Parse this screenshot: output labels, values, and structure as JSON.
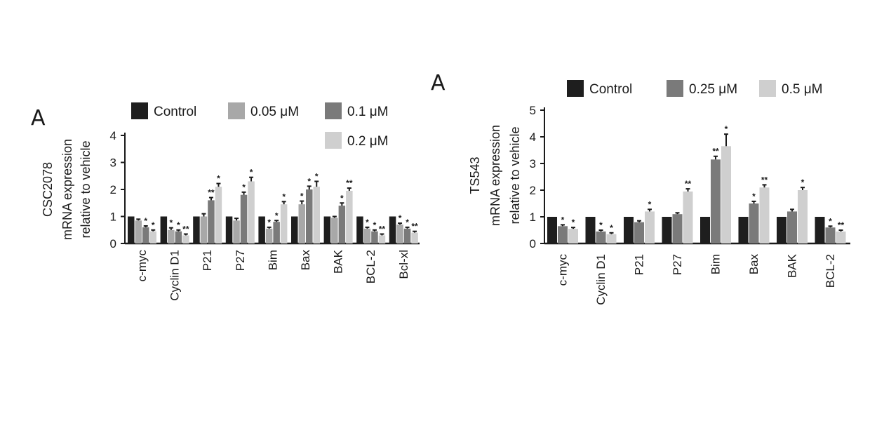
{
  "chart_data": [
    {
      "type": "bar",
      "panel_label": "A",
      "ylabel_lines": [
        "CSC2078",
        "mRNA expression",
        "relative to vehicle"
      ],
      "yticks": [
        "0",
        "1",
        "2",
        "3",
        "4"
      ],
      "ylim": [
        0,
        4
      ],
      "legend_placement": "top",
      "categories": [
        "c-myc",
        "Cyclin D1",
        "P21",
        "P27",
        "Bim",
        "Bax",
        "BAK",
        "BCL-2",
        "Bcl-xl"
      ],
      "series": [
        {
          "name": "Control",
          "color": "#1e1e1e",
          "values": [
            1,
            1,
            1,
            1,
            1,
            1,
            1,
            1,
            1
          ],
          "errors": [
            0,
            0,
            0,
            0,
            0,
            0,
            0,
            0,
            0
          ],
          "stars": [
            "",
            "",
            "",
            "",
            "",
            "",
            "",
            "",
            ""
          ]
        },
        {
          "name": "0.05 μM",
          "color": "#a8a8a8",
          "values": [
            0.85,
            0.5,
            1.0,
            0.85,
            0.55,
            1.45,
            0.95,
            0.55,
            0.7
          ],
          "errors": [
            0.05,
            0.08,
            0.1,
            0.08,
            0.05,
            0.12,
            0.05,
            0.05,
            0.05
          ],
          "stars": [
            "",
            "*",
            "",
            "",
            "*",
            "*",
            "",
            "*",
            "*"
          ]
        },
        {
          "name": "0.1 μM",
          "color": "#7a7a7a",
          "values": [
            0.6,
            0.45,
            1.6,
            1.8,
            0.8,
            2.0,
            1.4,
            0.45,
            0.55
          ],
          "errors": [
            0.05,
            0.05,
            0.1,
            0.1,
            0.05,
            0.12,
            0.1,
            0.05,
            0.05
          ],
          "stars": [
            "*",
            "*",
            "**",
            "*",
            "*",
            "*",
            "*",
            "*",
            "*"
          ]
        },
        {
          "name": "0.2 μM",
          "color": "#cfcfcf",
          "values": [
            0.45,
            0.3,
            2.1,
            2.3,
            1.45,
            2.1,
            1.95,
            0.3,
            0.4
          ],
          "errors": [
            0.05,
            0.05,
            0.12,
            0.15,
            0.1,
            0.2,
            0.1,
            0.05,
            0.05
          ],
          "stars": [
            "*",
            "**",
            "*",
            "*",
            "*",
            "*",
            "**",
            "**",
            "**"
          ]
        }
      ]
    },
    {
      "type": "bar",
      "panel_label": "A",
      "ylabel_lines": [
        "TS543",
        "mRNA expression",
        "relative to vehicle"
      ],
      "yticks": [
        "0",
        "1",
        "2",
        "3",
        "4",
        "5"
      ],
      "ylim": [
        0,
        5
      ],
      "legend_placement": "top",
      "categories": [
        "c-myc",
        "Cyclin D1",
        "P21",
        "P27",
        "Bim",
        "Bax",
        "BAK",
        "BCL-2"
      ],
      "series": [
        {
          "name": "Control",
          "color": "#1e1e1e",
          "values": [
            1,
            1,
            1,
            1,
            1,
            1,
            1,
            1
          ],
          "errors": [
            0,
            0,
            0,
            0,
            0,
            0,
            0,
            0
          ],
          "stars": [
            "",
            "",
            "",
            "",
            "",
            "",
            "",
            ""
          ]
        },
        {
          "name": "0.25 μM",
          "color": "#7a7a7a",
          "values": [
            0.65,
            0.45,
            0.8,
            1.1,
            3.15,
            1.5,
            1.2,
            0.6
          ],
          "errors": [
            0.05,
            0.05,
            0.05,
            0.05,
            0.12,
            0.08,
            0.08,
            0.05
          ],
          "stars": [
            "*",
            "*",
            "",
            "",
            "**",
            "*",
            "",
            "*"
          ]
        },
        {
          "name": "0.5 μM",
          "color": "#cfcfcf",
          "values": [
            0.55,
            0.35,
            1.2,
            1.95,
            3.65,
            2.1,
            2.0,
            0.45
          ],
          "errors": [
            0.05,
            0.05,
            0.08,
            0.1,
            0.45,
            0.1,
            0.1,
            0.05
          ],
          "stars": [
            "*",
            "*",
            "*",
            "**",
            "*",
            "**",
            "*",
            "**"
          ]
        }
      ]
    }
  ]
}
